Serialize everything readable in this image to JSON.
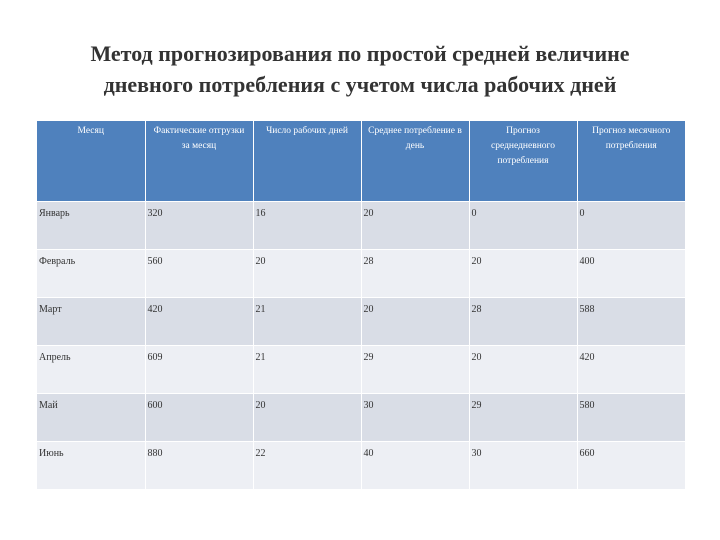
{
  "title": {
    "line1": "Метод прогнозирования по простой средней величине",
    "line2": "дневного потребления с учетом числа рабочих дней"
  },
  "table": {
    "headers": [
      "Месяц",
      "Фактические отгрузки за месяц",
      "Число рабочих дней",
      "Среднее потребление в день",
      "Прогноз среднедневного потребления",
      "Прогноз месячного потребления"
    ],
    "rows": [
      [
        "Январь",
        "320",
        "16",
        "20",
        "0",
        "0"
      ],
      [
        "Февраль",
        "560",
        "20",
        "28",
        "20",
        "400"
      ],
      [
        "Март",
        "420",
        "21",
        "20",
        "28",
        "588"
      ],
      [
        "Апрель",
        "609",
        "21",
        "29",
        "20",
        "420"
      ],
      [
        "Май",
        "600",
        "20",
        "30",
        "29",
        "580"
      ],
      [
        "Июнь",
        "880",
        "22",
        "40",
        "30",
        "660"
      ]
    ]
  },
  "colors": {
    "header_bg": "#4f81bd",
    "row_odd": "#d9dde6",
    "row_even": "#edeff4"
  }
}
